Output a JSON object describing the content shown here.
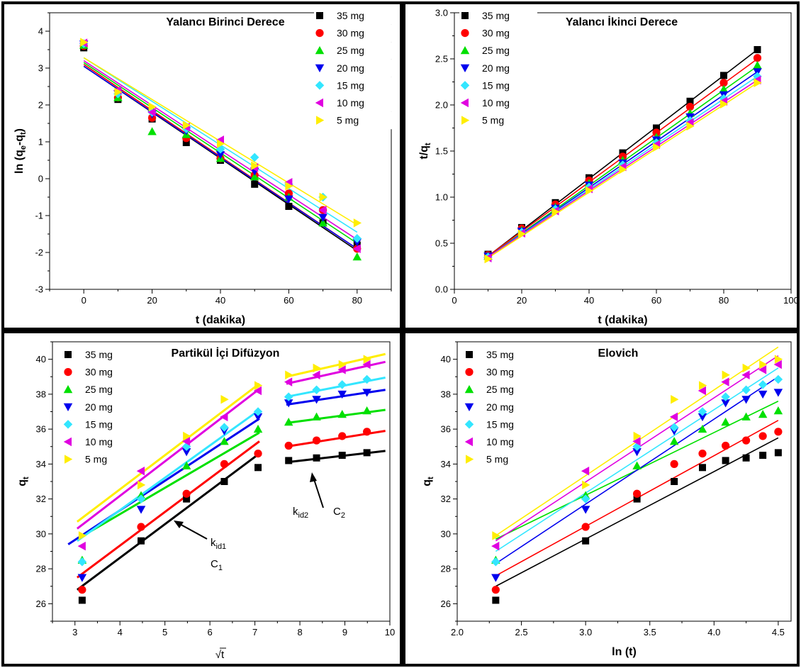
{
  "legend_series": [
    {
      "name": "35 mg",
      "color": "#000000",
      "marker": "square"
    },
    {
      "name": "30 mg",
      "color": "#ff0000",
      "marker": "circle"
    },
    {
      "name": "25 mg",
      "color": "#00e000",
      "marker": "triangle-up"
    },
    {
      "name": "20 mg",
      "color": "#0000ee",
      "marker": "triangle-down"
    },
    {
      "name": "15 mg",
      "color": "#33e6ff",
      "marker": "diamond"
    },
    {
      "name": "10 mg",
      "color": "#e000e0",
      "marker": "triangle-left"
    },
    {
      "name": "5 mg",
      "color": "#ffee00",
      "marker": "triangle-right"
    }
  ],
  "chart_data": [
    {
      "id": "pfo",
      "type": "scatter",
      "title": "Yalancı Birinci Derece",
      "xlabel": "t (dakika)",
      "ylabel": "ln (qₑ-qₜ)",
      "ylabel_parts": [
        "ln (q",
        "e",
        "-q",
        "t",
        ")"
      ],
      "xlim": [
        -10,
        90
      ],
      "ylim": [
        -3,
        4.5
      ],
      "xticks": [
        0,
        20,
        40,
        60,
        80
      ],
      "yticks": [
        -3,
        -2,
        -1,
        0,
        1,
        2,
        3,
        4
      ],
      "grid": false,
      "legend": "top-right",
      "x": [
        0,
        10,
        20,
        30,
        40,
        50,
        60,
        70,
        80
      ],
      "series": [
        {
          "name": "35 mg",
          "values": [
            3.55,
            2.15,
            1.62,
            0.98,
            0.5,
            -0.15,
            -0.75,
            -1.2,
            -1.8
          ],
          "fit": [
            3.05,
            -1.95
          ]
        },
        {
          "name": "30 mg",
          "values": [
            3.6,
            2.2,
            1.65,
            1.1,
            0.55,
            0.1,
            -0.4,
            -0.85,
            -1.9
          ],
          "fit": [
            3.1,
            -1.9
          ]
        },
        {
          "name": "25 mg",
          "values": [
            3.62,
            2.2,
            1.28,
            1.2,
            0.55,
            0.05,
            -0.5,
            -1.2,
            -2.12
          ],
          "fit": [
            3.15,
            -1.75
          ]
        },
        {
          "name": "20 mg",
          "values": [
            3.65,
            2.3,
            1.75,
            1.3,
            0.65,
            0.2,
            -0.55,
            -1.05,
            -1.72
          ],
          "fit": [
            3.05,
            -1.9
          ]
        },
        {
          "name": "15 mg",
          "values": [
            3.66,
            2.3,
            1.8,
            1.35,
            0.8,
            0.58,
            -0.15,
            -0.5,
            -1.62
          ],
          "fit": [
            3.28,
            -1.45
          ]
        },
        {
          "name": "10 mg",
          "values": [
            3.68,
            2.4,
            1.8,
            1.4,
            1.05,
            0.3,
            -0.1,
            -0.85,
            -1.9
          ],
          "fit": [
            3.2,
            -1.65
          ]
        },
        {
          "name": "5 mg",
          "values": [
            3.7,
            2.35,
            1.95,
            1.45,
            0.95,
            0.35,
            -0.2,
            -0.5,
            -1.2
          ],
          "fit": [
            3.28,
            -1.25
          ]
        }
      ]
    },
    {
      "id": "pso",
      "type": "scatter",
      "title": "Yalancı İkinci Derece",
      "xlabel": "t (dakika)",
      "ylabel": "t/qₜ",
      "ylabel_parts": [
        "t/q",
        "t",
        "",
        "",
        ""
      ],
      "xlim": [
        0,
        100
      ],
      "ylim": [
        0,
        3.0
      ],
      "xticks": [
        0,
        20,
        40,
        60,
        80,
        100
      ],
      "yticks": [
        0.0,
        0.5,
        1.0,
        1.5,
        2.0,
        2.5,
        3.0
      ],
      "ytick_format": "1",
      "grid": false,
      "legend": "top-left",
      "x": [
        10,
        20,
        30,
        40,
        50,
        60,
        70,
        80,
        90
      ],
      "series": [
        {
          "name": "35 mg",
          "values": [
            0.38,
            0.67,
            0.94,
            1.21,
            1.48,
            1.75,
            2.04,
            2.32,
            2.6
          ],
          "fit": [
            0.36,
            2.6
          ]
        },
        {
          "name": "30 mg",
          "values": [
            0.37,
            0.66,
            0.92,
            1.18,
            1.44,
            1.7,
            1.98,
            2.24,
            2.51
          ],
          "fit": [
            0.36,
            2.5
          ]
        },
        {
          "name": "25 mg",
          "values": [
            0.36,
            0.64,
            0.89,
            1.15,
            1.4,
            1.65,
            1.91,
            2.17,
            2.43
          ],
          "fit": [
            0.35,
            2.42
          ]
        },
        {
          "name": "20 mg",
          "values": [
            0.36,
            0.63,
            0.88,
            1.13,
            1.37,
            1.62,
            1.87,
            2.11,
            2.36
          ],
          "fit": [
            0.35,
            2.36
          ]
        },
        {
          "name": "15 mg",
          "values": [
            0.35,
            0.62,
            0.87,
            1.11,
            1.35,
            1.59,
            1.83,
            2.07,
            2.31
          ],
          "fit": [
            0.35,
            2.31
          ]
        },
        {
          "name": "10 mg",
          "values": [
            0.34,
            0.61,
            0.85,
            1.09,
            1.33,
            1.57,
            1.81,
            2.04,
            2.27
          ],
          "fit": [
            0.35,
            2.27
          ]
        },
        {
          "name": "5 mg",
          "values": [
            0.33,
            0.6,
            0.84,
            1.07,
            1.3,
            1.54,
            1.77,
            2.01,
            2.24
          ],
          "fit": [
            0.34,
            2.24
          ]
        }
      ]
    },
    {
      "id": "ipd",
      "type": "scatter",
      "title": "Partikül İçi Difüzyon",
      "xlabel": "√t",
      "ylabel": "qₜ",
      "ylabel_parts": [
        "q",
        "t",
        "",
        "",
        ""
      ],
      "xlim": [
        2.5,
        10
      ],
      "ylim": [
        25,
        41
      ],
      "xticks": [
        3,
        4,
        5,
        6,
        7,
        8,
        9,
        10
      ],
      "yticks": [
        26,
        28,
        30,
        32,
        34,
        36,
        38,
        40
      ],
      "grid": false,
      "legend": "top-left",
      "x": [
        3.16,
        4.47,
        5.48,
        6.32,
        7.07,
        7.75,
        8.37,
        8.94,
        9.49
      ],
      "series": [
        {
          "name": "35 mg",
          "values": [
            26.2,
            29.6,
            32.0,
            33.0,
            33.8,
            34.2,
            34.35,
            34.5,
            34.65
          ],
          "fit1": [
            [
              3.05,
              26.8
            ],
            [
              7.1,
              34.6
            ]
          ],
          "fit2": [
            [
              7.7,
              34.1
            ],
            [
              9.9,
              34.75
            ]
          ]
        },
        {
          "name": "30 mg",
          "values": [
            26.8,
            30.4,
            32.3,
            34.0,
            34.6,
            35.05,
            35.35,
            35.6,
            35.85
          ],
          "fit1": [
            [
              3.05,
              27.5
            ],
            [
              7.1,
              35.3
            ]
          ],
          "fit2": [
            [
              7.7,
              35.0
            ],
            [
              9.9,
              35.9
            ]
          ]
        },
        {
          "name": "25 mg",
          "values": [
            28.5,
            32.2,
            33.9,
            35.3,
            36.0,
            36.4,
            36.7,
            36.85,
            37.05
          ],
          "fit1": [
            [
              3.05,
              29.7
            ],
            [
              7.1,
              35.8
            ]
          ],
          "fit2": [
            [
              7.7,
              36.35
            ],
            [
              9.9,
              37.1
            ]
          ]
        },
        {
          "name": "20 mg",
          "values": [
            27.5,
            31.4,
            34.7,
            35.9,
            36.7,
            37.5,
            37.7,
            38.0,
            38.1
          ],
          "fit1": [
            [
              2.85,
              29.4
            ],
            [
              7.1,
              36.6
            ]
          ],
          "fit2": [
            [
              7.7,
              37.4
            ],
            [
              9.9,
              38.25
            ]
          ]
        },
        {
          "name": "15 mg",
          "values": [
            28.4,
            32.0,
            35.0,
            36.1,
            37.0,
            37.85,
            38.25,
            38.55,
            38.85
          ],
          "fit1": [
            [
              3.05,
              29.6
            ],
            [
              7.1,
              37.1
            ]
          ],
          "fit2": [
            [
              7.7,
              37.85
            ],
            [
              9.9,
              38.95
            ]
          ]
        },
        {
          "name": "10 mg",
          "values": [
            29.3,
            33.6,
            35.3,
            36.7,
            38.2,
            38.7,
            39.1,
            39.4,
            39.7
          ],
          "fit1": [
            [
              3.05,
              30.3
            ],
            [
              7.1,
              38.3
            ]
          ],
          "fit2": [
            [
              7.7,
              38.6
            ],
            [
              9.9,
              39.85
            ]
          ]
        },
        {
          "name": "5 mg",
          "values": [
            29.9,
            32.8,
            35.6,
            37.7,
            38.5,
            39.1,
            39.5,
            39.7,
            40.0
          ],
          "fit1": [
            [
              3.05,
              30.7
            ],
            [
              7.1,
              38.6
            ]
          ],
          "fit2": [
            [
              7.7,
              39.0
            ],
            [
              9.9,
              40.3
            ]
          ]
        }
      ],
      "annotations": {
        "k1": [
          "k",
          "id1"
        ],
        "c1": [
          "C",
          "1"
        ],
        "k2": [
          "k",
          "id2"
        ],
        "c2": [
          "C",
          "2"
        ]
      }
    },
    {
      "id": "elovich",
      "type": "scatter",
      "title": "Elovich",
      "xlabel": "ln (t)",
      "ylabel": "qₜ",
      "ylabel_parts": [
        "q",
        "t",
        "",
        "",
        ""
      ],
      "xlim": [
        2.0,
        4.6
      ],
      "ylim": [
        25,
        41
      ],
      "xticks": [
        2.0,
        2.5,
        3.0,
        3.5,
        4.0,
        4.5
      ],
      "xtick_format": "1",
      "yticks": [
        26,
        28,
        30,
        32,
        34,
        36,
        38,
        40
      ],
      "grid": false,
      "legend": "top-left",
      "x": [
        2.3,
        3.0,
        3.4,
        3.69,
        3.91,
        4.09,
        4.25,
        4.38,
        4.5
      ],
      "series": [
        {
          "name": "35 mg",
          "values": [
            26.2,
            29.6,
            32.0,
            33.0,
            33.8,
            34.2,
            34.35,
            34.5,
            34.65
          ],
          "fit": [
            [
              2.3,
              27.0
            ],
            [
              4.5,
              35.5
            ]
          ]
        },
        {
          "name": "30 mg",
          "values": [
            26.8,
            30.4,
            32.3,
            34.0,
            34.6,
            35.05,
            35.35,
            35.6,
            35.85
          ],
          "fit": [
            [
              2.3,
              27.6
            ],
            [
              4.5,
              36.5
            ]
          ]
        },
        {
          "name": "25 mg",
          "values": [
            28.5,
            32.2,
            33.9,
            35.3,
            36.0,
            36.4,
            36.7,
            36.85,
            37.05
          ],
          "fit": [
            [
              2.3,
              29.7
            ],
            [
              4.5,
              37.6
            ]
          ]
        },
        {
          "name": "20 mg",
          "values": [
            27.5,
            31.4,
            34.7,
            35.9,
            36.7,
            37.5,
            37.7,
            38.0,
            38.1
          ],
          "fit": [
            [
              2.3,
              28.3
            ],
            [
              4.5,
              39.0
            ]
          ]
        },
        {
          "name": "15 mg",
          "values": [
            28.4,
            32.0,
            35.0,
            36.1,
            37.0,
            37.85,
            38.25,
            38.55,
            38.85
          ],
          "fit": [
            [
              2.3,
              29.0
            ],
            [
              4.5,
              39.5
            ]
          ]
        },
        {
          "name": "10 mg",
          "values": [
            29.3,
            33.6,
            35.3,
            36.7,
            38.2,
            38.7,
            39.1,
            39.4,
            39.7
          ],
          "fit": [
            [
              2.3,
              29.6
            ],
            [
              4.5,
              40.2
            ]
          ]
        },
        {
          "name": "5 mg",
          "values": [
            29.9,
            32.8,
            35.6,
            37.7,
            38.5,
            39.1,
            39.5,
            39.7,
            40.0
          ],
          "fit": [
            [
              2.3,
              29.9
            ],
            [
              4.5,
              40.7
            ]
          ]
        }
      ]
    }
  ]
}
